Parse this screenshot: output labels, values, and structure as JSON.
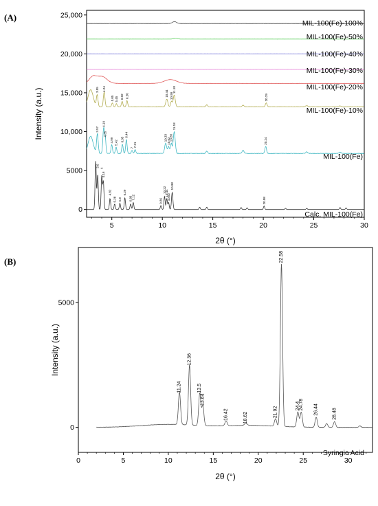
{
  "figure": {
    "panel_a_label": "(A)",
    "panel_b_label": "(B)"
  },
  "chart_data": [
    {
      "id": "A",
      "type": "line",
      "xlabel": "2θ (°)",
      "ylabel": "Intensity (a.u.)",
      "xlim": [
        2.5,
        30
      ],
      "ylim": [
        -1000,
        25600
      ],
      "x_ticks": [
        5,
        10,
        15,
        20,
        25,
        30
      ],
      "y_ticks": [
        {
          "value": 0,
          "label": "0"
        },
        {
          "value": 5000,
          "label": "5000"
        },
        {
          "value": 10000,
          "label": "10,000"
        },
        {
          "value": 15000,
          "label": "15,000"
        },
        {
          "value": 20000,
          "label": "20,000"
        },
        {
          "value": 25000,
          "label": "25,000"
        }
      ],
      "series": [
        {
          "name": "MIL-100(Fe)-100%",
          "color": "#555555",
          "baseline": 23900,
          "peaks": [
            [
              11.2,
              250,
              0.2
            ]
          ],
          "hump": [
            [
              3.5,
              0,
              0.1
            ]
          ],
          "noise": 20
        },
        {
          "name": "MIL-100(Fe)-50%",
          "color": "#5ccf5c",
          "baseline": 21900,
          "peaks": [
            [
              11.3,
              120,
              0.2
            ]
          ],
          "hump": [],
          "noise": 15
        },
        {
          "name": "MIL-100(Fe)-40%",
          "color": "#6b6bd6",
          "baseline": 20000,
          "peaks": [],
          "hump": [],
          "noise": 15
        },
        {
          "name": "MIL-100(Fe)-30%",
          "color": "#e57fd6",
          "baseline": 18000,
          "peaks": [],
          "hump": [],
          "noise": 15
        },
        {
          "name": "MIL-100(Fe)-20%",
          "color": "#e05a5a",
          "baseline": 16200,
          "peaks": [],
          "hump": [
            [
              3.1,
              800,
              0.35
            ],
            [
              4.0,
              900,
              0.5
            ],
            [
              10.8,
              500,
              0.6
            ]
          ],
          "noise": 25
        },
        {
          "name": "MIL-100(Fe)-10%",
          "color": "#b3ad52",
          "baseline": 13200,
          "peaks": [
            [
              3.55,
              1500,
              0.08
            ],
            [
              4.24,
              1900,
              0.08
            ],
            [
              5.05,
              500,
              0.07
            ],
            [
              5.45,
              400,
              0.07
            ],
            [
              6.02,
              700,
              0.07
            ],
            [
              6.5,
              800,
              0.07
            ],
            [
              10.44,
              1000,
              0.1
            ],
            [
              10.9,
              700,
              0.08
            ],
            [
              11.18,
              1500,
              0.1
            ],
            [
              14.4,
              250,
              0.08
            ],
            [
              20.29,
              500,
              0.08
            ],
            [
              18.0,
              200,
              0.1
            ],
            [
              24.3,
              150,
              0.1
            ],
            [
              27.6,
              120,
              0.1
            ]
          ],
          "hump": [
            [
              2.9,
              2200,
              0.25
            ]
          ],
          "noise": 40
        },
        {
          "name": "MIL-100(Fe)",
          "color": "#3fb7c2",
          "baseline": 7200,
          "peaks": [
            [
              3.57,
              2500,
              0.08
            ],
            [
              4.19,
              3200,
              0.08
            ],
            [
              4.35,
              1800,
              0.07
            ],
            [
              4.99,
              1100,
              0.07
            ],
            [
              5.42,
              800,
              0.07
            ],
            [
              6.05,
              1200,
              0.07
            ],
            [
              6.44,
              1800,
              0.07
            ],
            [
              7.0,
              400,
              0.07
            ],
            [
              7.31,
              500,
              0.07
            ],
            [
              10.33,
              1300,
              0.1
            ],
            [
              10.62,
              900,
              0.08
            ],
            [
              10.88,
              1300,
              0.08
            ],
            [
              11.18,
              2800,
              0.1
            ],
            [
              14.4,
              300,
              0.08
            ],
            [
              20.24,
              900,
              0.08
            ],
            [
              18.0,
              400,
              0.1
            ],
            [
              24.3,
              200,
              0.1
            ],
            [
              27.6,
              150,
              0.1
            ]
          ],
          "hump": [
            [
              2.9,
              2200,
              0.25
            ]
          ],
          "noise": 60
        },
        {
          "name": "Calc. MIL-100(Fe)",
          "color": "#333333",
          "baseline": 0,
          "peaks": [
            [
              3.4,
              6200,
              0.06
            ],
            [
              3.6,
              4500,
              0.06
            ],
            [
              4.0,
              4300,
              0.06
            ],
            [
              4.16,
              3600,
              0.06
            ],
            [
              4.82,
              1400,
              0.06
            ],
            [
              5.28,
              700,
              0.06
            ],
            [
              5.8,
              800,
              0.06
            ],
            [
              6.29,
              1500,
              0.06
            ],
            [
              6.86,
              700,
              0.06
            ],
            [
              7.12,
              900,
              0.06
            ],
            [
              9.86,
              500,
              0.06
            ],
            [
              10.22,
              1700,
              0.06
            ],
            [
              10.44,
              1400,
              0.06
            ],
            [
              10.62,
              900,
              0.06
            ],
            [
              10.98,
              2200,
              0.07
            ],
            [
              13.7,
              300,
              0.06
            ],
            [
              14.4,
              300,
              0.06
            ],
            [
              17.8,
              250,
              0.06
            ],
            [
              18.4,
              200,
              0.06
            ],
            [
              20.08,
              450,
              0.06
            ],
            [
              22.2,
              150,
              0.06
            ],
            [
              24.3,
              150,
              0.06
            ],
            [
              27.6,
              250,
              0.06
            ],
            [
              28.2,
              200,
              0.06
            ]
          ],
          "hump": [],
          "noise": 0
        }
      ],
      "peak_labels": [
        {
          "x": 3.55,
          "y": 15000,
          "text": "3.55"
        },
        {
          "x": 4.24,
          "y": 15100,
          "text": "4.24"
        },
        {
          "x": 5.05,
          "y": 13900,
          "text": "5.05"
        },
        {
          "x": 5.45,
          "y": 13800,
          "text": "5.45"
        },
        {
          "x": 6.02,
          "y": 14100,
          "text": "6.02"
        },
        {
          "x": 6.5,
          "y": 14200,
          "text": "6.50"
        },
        {
          "x": 10.44,
          "y": 14400,
          "text": "10.44"
        },
        {
          "x": 10.9,
          "y": 14100,
          "text": "10.90"
        },
        {
          "x": 11.18,
          "y": 14900,
          "text": "11.18"
        },
        {
          "x": 20.29,
          "y": 13900,
          "text": "20.29"
        },
        {
          "x": 3.57,
          "y": 9900,
          "text": "3.57"
        },
        {
          "x": 4.19,
          "y": 10600,
          "text": "4.19"
        },
        {
          "x": 4.35,
          "y": 9300,
          "text": "4.35"
        },
        {
          "x": 4.99,
          "y": 8500,
          "text": "4.99"
        },
        {
          "x": 5.42,
          "y": 8200,
          "text": "5.42"
        },
        {
          "x": 6.05,
          "y": 8600,
          "text": "6.05"
        },
        {
          "x": 6.44,
          "y": 9200,
          "text": "6.44"
        },
        {
          "x": 7.0,
          "y": 7800,
          "text": "7"
        },
        {
          "x": 7.31,
          "y": 7900,
          "text": "7.31"
        },
        {
          "x": 10.33,
          "y": 8700,
          "text": "10.33"
        },
        {
          "x": 10.62,
          "y": 8300,
          "text": "10.62"
        },
        {
          "x": 10.88,
          "y": 8700,
          "text": "10.88"
        },
        {
          "x": 11.18,
          "y": 10200,
          "text": "11.18"
        },
        {
          "x": 20.24,
          "y": 8300,
          "text": "20.24"
        },
        {
          "x": 3.6,
          "y": 5300,
          "text": "3.6"
        },
        {
          "x": 4.0,
          "y": 5200,
          "text": "4"
        },
        {
          "x": 4.16,
          "y": 4100,
          "text": "4.16"
        },
        {
          "x": 4.82,
          "y": 1800,
          "text": "4.82"
        },
        {
          "x": 5.28,
          "y": 900,
          "text": "5.28"
        },
        {
          "x": 5.8,
          "y": 1000,
          "text": "5.8"
        },
        {
          "x": 6.29,
          "y": 1800,
          "text": "6.29"
        },
        {
          "x": 6.86,
          "y": 1000,
          "text": "6.86"
        },
        {
          "x": 7.12,
          "y": 1150,
          "text": "7.12"
        },
        {
          "x": 9.86,
          "y": 700,
          "text": "9.86"
        },
        {
          "x": 10.22,
          "y": 2000,
          "text": "10.22"
        },
        {
          "x": 10.44,
          "y": 1600,
          "text": "10.44"
        },
        {
          "x": 10.62,
          "y": 1100,
          "text": "10.62"
        },
        {
          "x": 10.98,
          "y": 2500,
          "text": "10.98"
        },
        {
          "x": 20.08,
          "y": 650,
          "text": "20.08"
        }
      ]
    },
    {
      "id": "B",
      "type": "line",
      "xlabel": "2θ (°)",
      "ylabel": "Intensity (a.u.)",
      "xlim": [
        0,
        32.7
      ],
      "ylim": [
        -1000,
        7200
      ],
      "x_ticks": [
        0,
        5,
        10,
        15,
        20,
        25,
        30
      ],
      "y_ticks": [
        {
          "value": 0,
          "label": "0"
        },
        {
          "value": 5000,
          "label": "5000"
        }
      ],
      "series": [
        {
          "name": "Syringic Acid",
          "color": "#555555",
          "baseline": 0,
          "x_start": 2,
          "peaks": [
            [
              11.24,
              1300,
              0.12
            ],
            [
              12.36,
              2400,
              0.12
            ],
            [
              13.5,
              1300,
              0.12
            ],
            [
              13.84,
              800,
              0.12
            ],
            [
              16.42,
              200,
              0.12
            ],
            [
              18.62,
              80,
              0.15
            ],
            [
              21.92,
              300,
              0.12
            ],
            [
              22.58,
              6500,
              0.12
            ],
            [
              24.4,
              600,
              0.12
            ],
            [
              24.78,
              600,
              0.12
            ],
            [
              26.44,
              400,
              0.12
            ],
            [
              28.48,
              230,
              0.12
            ],
            [
              27.6,
              150,
              0.12
            ],
            [
              31.3,
              60,
              0.12
            ]
          ],
          "hump": [
            [
              10.0,
              120,
              3.0
            ],
            [
              19.0,
              80,
              3.0
            ]
          ],
          "noise": 12
        }
      ],
      "peak_labels": [
        {
          "x": 11.24,
          "y": 1380,
          "text": "11.24"
        },
        {
          "x": 12.36,
          "y": 2480,
          "text": "12.36"
        },
        {
          "x": 13.5,
          "y": 1380,
          "text": "13.5"
        },
        {
          "x": 13.84,
          "y": 870,
          "text": "13.84"
        },
        {
          "x": 16.42,
          "y": 270,
          "text": "16.42"
        },
        {
          "x": 18.62,
          "y": 150,
          "text": "18.62"
        },
        {
          "x": 21.92,
          "y": 370,
          "text": "21.92"
        },
        {
          "x": 22.58,
          "y": 6580,
          "text": "22.58"
        },
        {
          "x": 24.4,
          "y": 670,
          "text": "24.4"
        },
        {
          "x": 24.78,
          "y": 670,
          "text": "24.78"
        },
        {
          "x": 26.44,
          "y": 470,
          "text": "26.44"
        },
        {
          "x": 28.48,
          "y": 300,
          "text": "28.48"
        }
      ]
    }
  ]
}
